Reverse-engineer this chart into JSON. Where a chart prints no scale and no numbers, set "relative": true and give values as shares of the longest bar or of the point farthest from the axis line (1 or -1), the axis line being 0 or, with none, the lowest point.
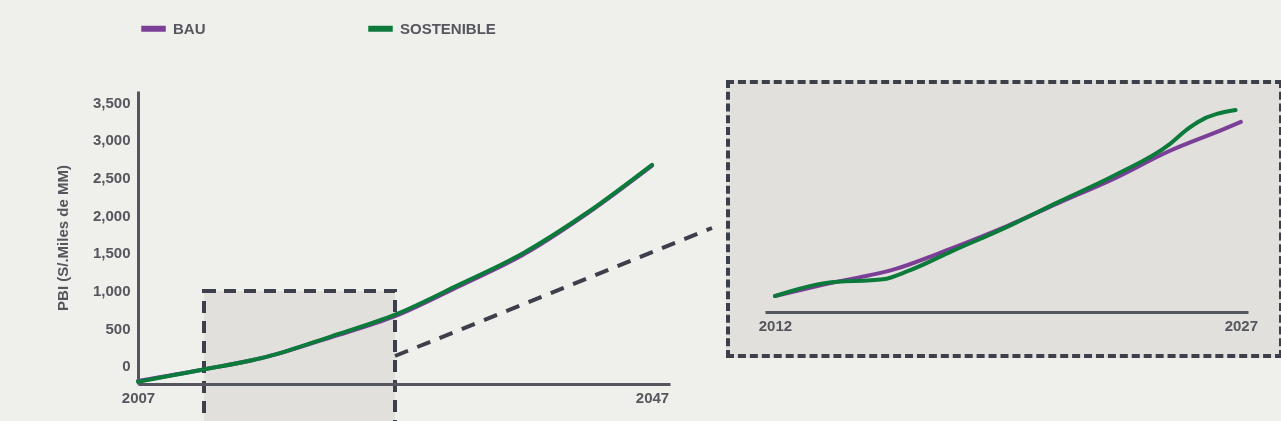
{
  "chart_data": [
    {
      "type": "line",
      "ylabel": "PBI (S/.Miles de MM)",
      "legend": "top left",
      "x": [
        2007,
        2012,
        2017,
        2022,
        2027,
        2032,
        2037,
        2042,
        2047
      ],
      "xlim": [
        2007,
        2048.4
      ],
      "xticks": [
        2007,
        2047
      ],
      "ylim": [
        -240,
        3650
      ],
      "yticks": [
        0,
        500,
        {
          "value": 1000,
          "label": "1,000"
        },
        {
          "value": 1500,
          "label": "1,500"
        },
        {
          "value": 2000,
          "label": "2,000"
        },
        {
          "value": 2500,
          "label": "2,500"
        },
        {
          "value": 3000,
          "label": "3,000"
        },
        {
          "value": 3500,
          "label": "3,500"
        }
      ],
      "series": [
        {
          "name": "BAU",
          "color": "#7b3f98",
          "values": [
            -200,
            -50,
            120,
            380,
            660,
            1060,
            1480,
            2030,
            2660
          ]
        },
        {
          "name": "SOSTENIBLE",
          "color": "#0b7a3b",
          "values": [
            -210,
            -50,
            120,
            390,
            680,
            1080,
            1500,
            2040,
            2670
          ]
        }
      ]
    },
    {
      "type": "line",
      "relative": true,
      "xlim": [
        2011.68,
        2027.23
      ],
      "xticks": [
        2012,
        2027
      ],
      "series": [
        {
          "color": "#7b3f98",
          "x": [
            2012,
            2013.64,
            2015.94,
            2017.67,
            2019.51,
            2021.12,
            2022.97,
            2024.7,
            2026.43,
            2027
          ],
          "values": [
            0.079,
            0.138,
            0.216,
            0.314,
            0.428,
            0.539,
            0.664,
            0.797,
            0.904,
            0.941
          ]
        },
        {
          "color": "#0b7a3b",
          "x": [
            2012,
            2013.64,
            2015.48,
            2016.29,
            2017.67,
            2019.51,
            2021.12,
            2022.97,
            2024.7,
            2025.27,
            2025.62,
            2026.83
          ],
          "values": [
            0.079,
            0.144,
            0.162,
            0.203,
            0.299,
            0.424,
            0.544,
            0.679,
            0.83,
            0.904,
            0.941,
            1.0
          ]
        }
      ]
    }
  ]
}
